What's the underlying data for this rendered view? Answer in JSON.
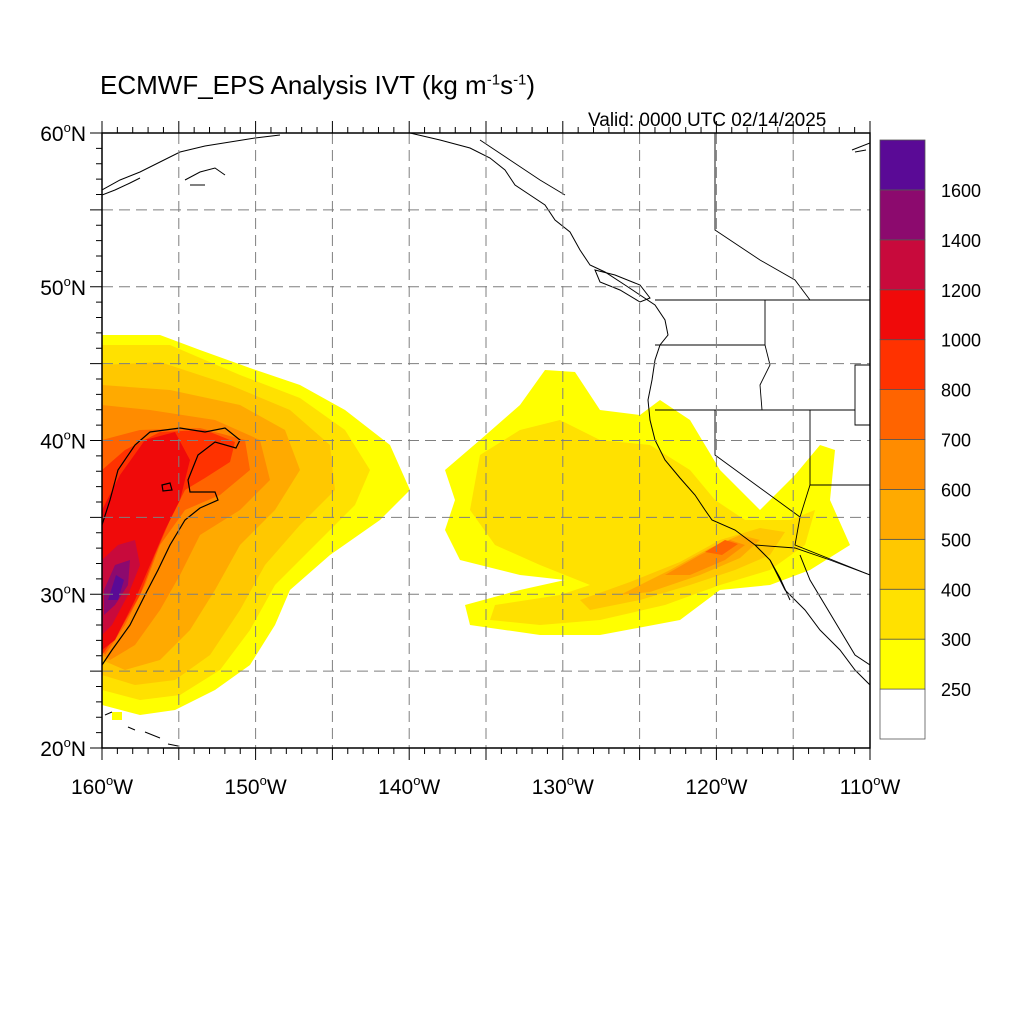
{
  "header": {
    "title_main": "ECMWF_EPS Analysis IVT (kg m",
    "title_exp1": "-1",
    "title_mid": "s",
    "title_exp2": "-1",
    "title_end": ")",
    "valid": "Valid: 0000 UTC 02/14/2025"
  },
  "map": {
    "lon_range": [
      -160,
      -110
    ],
    "lat_range": [
      20,
      60
    ],
    "lon_ticks": [
      {
        "value": -160,
        "num": "160",
        "deg": "o",
        "hem": "W"
      },
      {
        "value": -150,
        "num": "150",
        "deg": "o",
        "hem": "W"
      },
      {
        "value": -140,
        "num": "140",
        "deg": "o",
        "hem": "W"
      },
      {
        "value": -130,
        "num": "130",
        "deg": "o",
        "hem": "W"
      },
      {
        "value": -120,
        "num": "120",
        "deg": "o",
        "hem": "W"
      },
      {
        "value": -110,
        "num": "110",
        "deg": "o",
        "hem": "W"
      }
    ],
    "lat_ticks": [
      {
        "value": 20,
        "num": "20",
        "deg": "o",
        "hem": "N"
      },
      {
        "value": 30,
        "num": "30",
        "deg": "o",
        "hem": "N"
      },
      {
        "value": 40,
        "num": "40",
        "deg": "o",
        "hem": "N"
      },
      {
        "value": 50,
        "num": "50",
        "deg": "o",
        "hem": "N"
      },
      {
        "value": 60,
        "num": "60",
        "deg": "o",
        "hem": "N"
      }
    ],
    "gridlines": true,
    "gridline_style": "dashed",
    "contour_level": 1000
  },
  "colorbar": {
    "bins": [
      {
        "color": "#ffffff"
      },
      {
        "color": "#ffff00"
      },
      {
        "color": "#ffe100"
      },
      {
        "color": "#ffc800"
      },
      {
        "color": "#ffaa00"
      },
      {
        "color": "#ff8c00"
      },
      {
        "color": "#ff6400"
      },
      {
        "color": "#ff3200"
      },
      {
        "color": "#f00a0a"
      },
      {
        "color": "#c80a3c"
      },
      {
        "color": "#8c0a6e"
      },
      {
        "color": "#5a0a96"
      }
    ],
    "labels": [
      "250",
      "300",
      "400",
      "500",
      "600",
      "700",
      "800",
      "1000",
      "1200",
      "1400",
      "1600"
    ]
  }
}
